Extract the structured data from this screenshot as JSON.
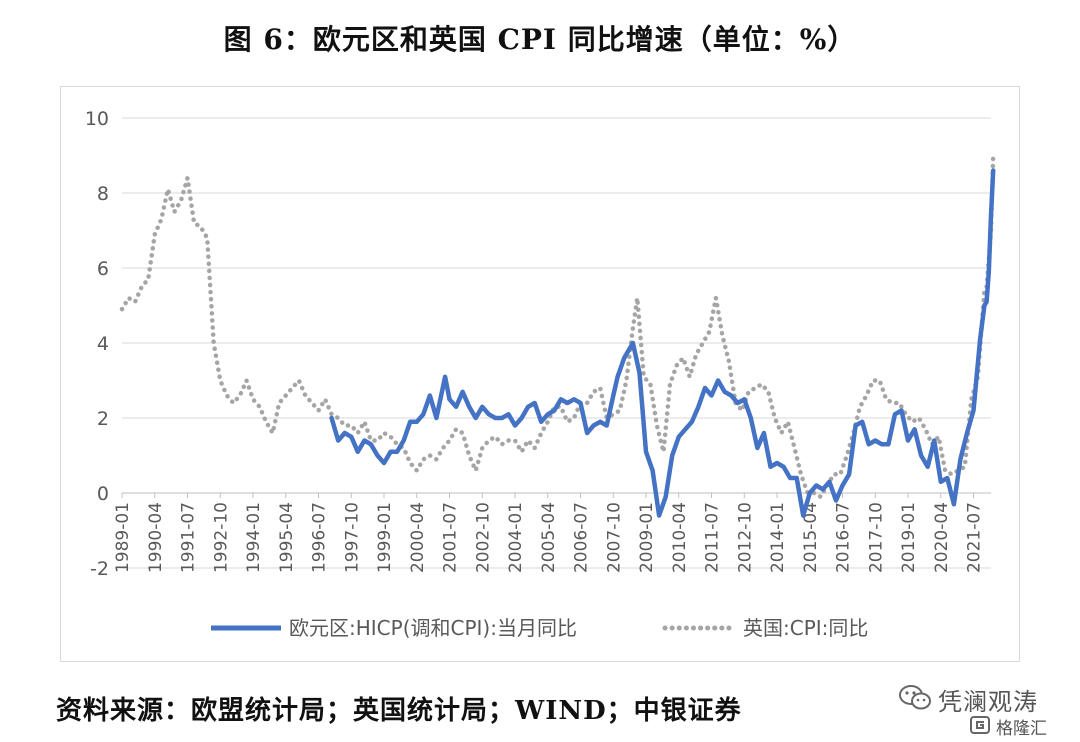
{
  "figure": {
    "title": "图 6：欧元区和英国 CPI 同比增速（单位：%）",
    "source": "资料来源：欧盟统计局；英国统计局；WIND；中银证券"
  },
  "watermark": {
    "name": "凭澜观涛",
    "site": "格隆汇",
    "icon": "wechat-icon",
    "logo": "gelonghui-logo-icon"
  },
  "colors": {
    "euro": "#4472c4",
    "uk": "#a5a5a5",
    "grid": "#d9d9d9",
    "axis_text": "#595959"
  },
  "chart_data": {
    "type": "line",
    "title": "图 6：欧元区和英国 CPI 同比增速（单位：%）",
    "xlabel": "",
    "ylabel": "",
    "ylim": [
      -2,
      10
    ],
    "yticks": [
      -2,
      0,
      2,
      4,
      6,
      8,
      10
    ],
    "xlim": [
      "1989-01",
      "2022-03"
    ],
    "xticks": [
      "1989-01",
      "1990-04",
      "1991-07",
      "1992-10",
      "1994-01",
      "1995-04",
      "1996-07",
      "1997-10",
      "1999-01",
      "2000-04",
      "2001-07",
      "2002-10",
      "2004-01",
      "2005-04",
      "2006-07",
      "2007-10",
      "2009-01",
      "2010-04",
      "2011-07",
      "2012-10",
      "2014-01",
      "2015-04",
      "2016-07",
      "2017-10",
      "2019-01",
      "2020-04",
      "2021-07"
    ],
    "grid": "horizontal",
    "legend_position": "bottom",
    "series": [
      {
        "name": "欧元区:HICP(调和CPI):当月同比",
        "style": "solid",
        "points": [
          [
            "1997-01",
            2.0
          ],
          [
            "1997-04",
            1.4
          ],
          [
            "1997-07",
            1.6
          ],
          [
            "1997-10",
            1.5
          ],
          [
            "1998-01",
            1.1
          ],
          [
            "1998-04",
            1.4
          ],
          [
            "1998-07",
            1.3
          ],
          [
            "1998-10",
            1.0
          ],
          [
            "1999-01",
            0.8
          ],
          [
            "1999-04",
            1.1
          ],
          [
            "1999-07",
            1.1
          ],
          [
            "1999-10",
            1.4
          ],
          [
            "2000-01",
            1.9
          ],
          [
            "2000-04",
            1.9
          ],
          [
            "2000-07",
            2.1
          ],
          [
            "2000-10",
            2.6
          ],
          [
            "2001-01",
            2.0
          ],
          [
            "2001-05",
            3.1
          ],
          [
            "2001-07",
            2.5
          ],
          [
            "2001-10",
            2.3
          ],
          [
            "2002-01",
            2.7
          ],
          [
            "2002-04",
            2.3
          ],
          [
            "2002-07",
            2.0
          ],
          [
            "2002-10",
            2.3
          ],
          [
            "2003-01",
            2.1
          ],
          [
            "2003-04",
            2.0
          ],
          [
            "2003-07",
            2.0
          ],
          [
            "2003-10",
            2.1
          ],
          [
            "2004-01",
            1.8
          ],
          [
            "2004-04",
            2.0
          ],
          [
            "2004-07",
            2.3
          ],
          [
            "2004-10",
            2.4
          ],
          [
            "2005-01",
            1.9
          ],
          [
            "2005-04",
            2.1
          ],
          [
            "2005-07",
            2.2
          ],
          [
            "2005-10",
            2.5
          ],
          [
            "2006-01",
            2.4
          ],
          [
            "2006-04",
            2.5
          ],
          [
            "2006-07",
            2.4
          ],
          [
            "2006-10",
            1.6
          ],
          [
            "2007-01",
            1.8
          ],
          [
            "2007-04",
            1.9
          ],
          [
            "2007-07",
            1.8
          ],
          [
            "2007-10",
            2.6
          ],
          [
            "2007-12",
            3.1
          ],
          [
            "2008-03",
            3.6
          ],
          [
            "2008-07",
            4.0
          ],
          [
            "2008-10",
            3.2
          ],
          [
            "2009-01",
            1.1
          ],
          [
            "2009-04",
            0.6
          ],
          [
            "2009-07",
            -0.6
          ],
          [
            "2009-10",
            -0.1
          ],
          [
            "2010-01",
            1.0
          ],
          [
            "2010-04",
            1.5
          ],
          [
            "2010-07",
            1.7
          ],
          [
            "2010-10",
            1.9
          ],
          [
            "2011-01",
            2.3
          ],
          [
            "2011-04",
            2.8
          ],
          [
            "2011-07",
            2.6
          ],
          [
            "2011-10",
            3.0
          ],
          [
            "2012-01",
            2.7
          ],
          [
            "2012-04",
            2.6
          ],
          [
            "2012-07",
            2.4
          ],
          [
            "2012-10",
            2.5
          ],
          [
            "2013-01",
            2.0
          ],
          [
            "2013-04",
            1.2
          ],
          [
            "2013-07",
            1.6
          ],
          [
            "2013-10",
            0.7
          ],
          [
            "2014-01",
            0.8
          ],
          [
            "2014-04",
            0.7
          ],
          [
            "2014-07",
            0.4
          ],
          [
            "2014-10",
            0.4
          ],
          [
            "2015-01",
            -0.6
          ],
          [
            "2015-04",
            0.0
          ],
          [
            "2015-07",
            0.2
          ],
          [
            "2015-10",
            0.1
          ],
          [
            "2016-01",
            0.3
          ],
          [
            "2016-04",
            -0.2
          ],
          [
            "2016-07",
            0.2
          ],
          [
            "2016-10",
            0.5
          ],
          [
            "2017-01",
            1.8
          ],
          [
            "2017-04",
            1.9
          ],
          [
            "2017-07",
            1.3
          ],
          [
            "2017-10",
            1.4
          ],
          [
            "2018-01",
            1.3
          ],
          [
            "2018-04",
            1.3
          ],
          [
            "2018-07",
            2.1
          ],
          [
            "2018-10",
            2.2
          ],
          [
            "2019-01",
            1.4
          ],
          [
            "2019-04",
            1.7
          ],
          [
            "2019-07",
            1.0
          ],
          [
            "2019-10",
            0.7
          ],
          [
            "2020-01",
            1.4
          ],
          [
            "2020-04",
            0.3
          ],
          [
            "2020-07",
            0.4
          ],
          [
            "2020-10",
            -0.3
          ],
          [
            "2021-01",
            0.9
          ],
          [
            "2021-04",
            1.6
          ],
          [
            "2021-07",
            2.2
          ],
          [
            "2021-10",
            4.1
          ],
          [
            "2021-12",
            5.0
          ],
          [
            "2022-01",
            5.1
          ],
          [
            "2022-02",
            5.9
          ],
          [
            "2022-03",
            7.4
          ],
          [
            "2022-04",
            8.6
          ]
        ]
      },
      {
        "name": "英国:CPI:同比",
        "style": "dotted",
        "points": [
          [
            "1989-01",
            4.9
          ],
          [
            "1989-04",
            5.2
          ],
          [
            "1989-07",
            5.1
          ],
          [
            "1989-10",
            5.5
          ],
          [
            "1990-01",
            5.7
          ],
          [
            "1990-04",
            6.9
          ],
          [
            "1990-07",
            7.3
          ],
          [
            "1990-10",
            8.1
          ],
          [
            "1991-01",
            7.5
          ],
          [
            "1991-04",
            7.8
          ],
          [
            "1991-07",
            8.4
          ],
          [
            "1991-10",
            7.2
          ],
          [
            "1992-01",
            7.1
          ],
          [
            "1992-04",
            6.8
          ],
          [
            "1992-07",
            4.0
          ],
          [
            "1992-10",
            3.0
          ],
          [
            "1993-01",
            2.6
          ],
          [
            "1993-04",
            2.4
          ],
          [
            "1993-07",
            2.6
          ],
          [
            "1993-10",
            3.0
          ],
          [
            "1994-01",
            2.5
          ],
          [
            "1994-04",
            2.3
          ],
          [
            "1994-07",
            1.9
          ],
          [
            "1994-10",
            1.6
          ],
          [
            "1995-01",
            2.4
          ],
          [
            "1995-04",
            2.6
          ],
          [
            "1995-07",
            2.8
          ],
          [
            "1995-10",
            3.0
          ],
          [
            "1996-01",
            2.6
          ],
          [
            "1996-04",
            2.4
          ],
          [
            "1996-07",
            2.2
          ],
          [
            "1996-10",
            2.5
          ],
          [
            "1997-01",
            2.1
          ],
          [
            "1997-04",
            2.0
          ],
          [
            "1997-07",
            1.8
          ],
          [
            "1997-10",
            1.8
          ],
          [
            "1998-01",
            1.6
          ],
          [
            "1998-04",
            1.9
          ],
          [
            "1998-07",
            1.4
          ],
          [
            "1998-10",
            1.4
          ],
          [
            "1999-01",
            1.6
          ],
          [
            "1999-04",
            1.5
          ],
          [
            "1999-07",
            1.3
          ],
          [
            "1999-10",
            1.2
          ],
          [
            "2000-01",
            0.8
          ],
          [
            "2000-04",
            0.6
          ],
          [
            "2000-07",
            0.9
          ],
          [
            "2000-10",
            1.0
          ],
          [
            "2001-01",
            0.9
          ],
          [
            "2001-04",
            1.2
          ],
          [
            "2001-07",
            1.4
          ],
          [
            "2001-10",
            1.7
          ],
          [
            "2002-01",
            1.6
          ],
          [
            "2002-04",
            1.0
          ],
          [
            "2002-07",
            0.6
          ],
          [
            "2002-10",
            1.2
          ],
          [
            "2003-01",
            1.4
          ],
          [
            "2003-04",
            1.5
          ],
          [
            "2003-07",
            1.3
          ],
          [
            "2003-10",
            1.4
          ],
          [
            "2004-01",
            1.4
          ],
          [
            "2004-04",
            1.1
          ],
          [
            "2004-07",
            1.4
          ],
          [
            "2004-10",
            1.2
          ],
          [
            "2005-01",
            1.6
          ],
          [
            "2005-04",
            1.9
          ],
          [
            "2005-07",
            2.3
          ],
          [
            "2005-10",
            2.3
          ],
          [
            "2006-01",
            1.9
          ],
          [
            "2006-04",
            2.0
          ],
          [
            "2006-07",
            2.4
          ],
          [
            "2006-10",
            2.4
          ],
          [
            "2007-01",
            2.7
          ],
          [
            "2007-04",
            2.8
          ],
          [
            "2007-07",
            2.0
          ],
          [
            "2007-10",
            2.1
          ],
          [
            "2008-01",
            2.2
          ],
          [
            "2008-04",
            3.0
          ],
          [
            "2008-07",
            4.4
          ],
          [
            "2008-09",
            5.2
          ],
          [
            "2008-12",
            3.1
          ],
          [
            "2009-03",
            2.9
          ],
          [
            "2009-06",
            1.8
          ],
          [
            "2009-09",
            1.1
          ],
          [
            "2009-12",
            2.9
          ],
          [
            "2010-03",
            3.4
          ],
          [
            "2010-06",
            3.6
          ],
          [
            "2010-09",
            3.1
          ],
          [
            "2010-12",
            3.7
          ],
          [
            "2011-03",
            4.0
          ],
          [
            "2011-06",
            4.3
          ],
          [
            "2011-09",
            5.2
          ],
          [
            "2011-12",
            4.2
          ],
          [
            "2012-03",
            3.5
          ],
          [
            "2012-06",
            2.4
          ],
          [
            "2012-09",
            2.2
          ],
          [
            "2012-12",
            2.7
          ],
          [
            "2013-03",
            2.8
          ],
          [
            "2013-06",
            2.9
          ],
          [
            "2013-09",
            2.7
          ],
          [
            "2013-12",
            2.0
          ],
          [
            "2014-03",
            1.6
          ],
          [
            "2014-06",
            1.9
          ],
          [
            "2014-09",
            1.2
          ],
          [
            "2014-12",
            0.5
          ],
          [
            "2015-03",
            0.0
          ],
          [
            "2015-06",
            0.0
          ],
          [
            "2015-09",
            -0.1
          ],
          [
            "2015-12",
            0.2
          ],
          [
            "2016-03",
            0.5
          ],
          [
            "2016-06",
            0.5
          ],
          [
            "2016-09",
            1.0
          ],
          [
            "2016-12",
            1.6
          ],
          [
            "2017-03",
            2.3
          ],
          [
            "2017-06",
            2.6
          ],
          [
            "2017-09",
            3.0
          ],
          [
            "2017-12",
            3.0
          ],
          [
            "2018-03",
            2.5
          ],
          [
            "2018-06",
            2.4
          ],
          [
            "2018-09",
            2.4
          ],
          [
            "2018-12",
            2.1
          ],
          [
            "2019-03",
            1.9
          ],
          [
            "2019-06",
            2.0
          ],
          [
            "2019-09",
            1.7
          ],
          [
            "2019-12",
            1.3
          ],
          [
            "2020-03",
            1.5
          ],
          [
            "2020-06",
            0.6
          ],
          [
            "2020-09",
            0.5
          ],
          [
            "2020-12",
            0.6
          ],
          [
            "2021-03",
            0.7
          ],
          [
            "2021-06",
            2.5
          ],
          [
            "2021-09",
            3.1
          ],
          [
            "2021-12",
            5.4
          ],
          [
            "2022-01",
            5.5
          ],
          [
            "2022-02",
            6.2
          ],
          [
            "2022-03",
            7.0
          ],
          [
            "2022-04",
            9.0
          ]
        ]
      }
    ]
  }
}
